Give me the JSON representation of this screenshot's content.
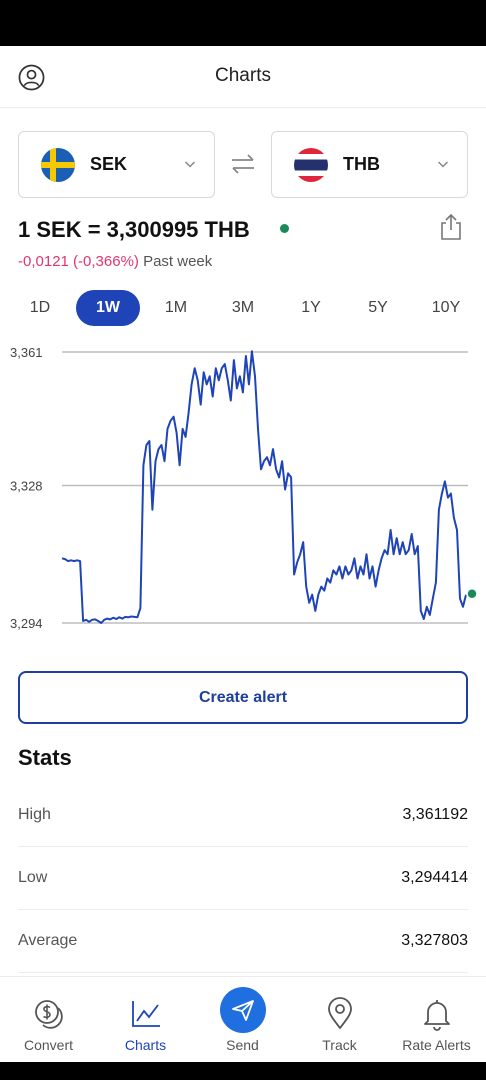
{
  "header": {
    "title": "Charts",
    "profile_icon": "profile-icon"
  },
  "converter": {
    "from": {
      "code": "SEK",
      "flag": "sweden-flag-icon"
    },
    "to": {
      "code": "THB",
      "flag": "thailand-flag-icon"
    },
    "swap_icon": "swap-arrows-icon"
  },
  "rate": {
    "text": "1 SEK = 3,300995 THB",
    "change": "-0,0121 (-0,366%)",
    "period": "Past week",
    "share_icon": "share-icon",
    "live_color": "#1a8a5a",
    "change_color": "#e0366c"
  },
  "ranges": [
    {
      "label": "1D",
      "active": false
    },
    {
      "label": "1W",
      "active": true
    },
    {
      "label": "1M",
      "active": false
    },
    {
      "label": "3M",
      "active": false
    },
    {
      "label": "1Y",
      "active": false
    },
    {
      "label": "5Y",
      "active": false
    },
    {
      "label": "10Y",
      "active": false
    }
  ],
  "chart_data": {
    "type": "line",
    "xlabel": "",
    "ylabel": "",
    "ylim": [
      3.294,
      3.361
    ],
    "yticks": [
      3.294,
      3.328,
      3.361
    ],
    "ytick_labels": [
      "3,294",
      "3,328",
      "3,361"
    ],
    "grid": true,
    "line_color": "#1f44b8",
    "series": [
      {
        "values": [
          3.31,
          3.3098,
          3.3093,
          3.3095,
          3.3093,
          3.3095,
          3.3093,
          3.2945,
          3.2948,
          3.2943,
          3.2948,
          3.2949,
          3.2945,
          3.294,
          3.2948,
          3.2951,
          3.2949,
          3.2953,
          3.295,
          3.2954,
          3.2951,
          3.2955,
          3.2954,
          3.2956,
          3.2955,
          3.2954,
          3.2977,
          3.333,
          3.338,
          3.339,
          3.322,
          3.334,
          3.337,
          3.338,
          3.334,
          3.342,
          3.344,
          3.345,
          3.341,
          3.333,
          3.342,
          3.34,
          3.346,
          3.353,
          3.357,
          3.354,
          3.348,
          3.356,
          3.353,
          3.355,
          3.35,
          3.357,
          3.354,
          3.357,
          3.358,
          3.354,
          3.349,
          3.359,
          3.352,
          3.355,
          3.351,
          3.36,
          3.353,
          3.3612,
          3.355,
          3.342,
          3.332,
          3.334,
          3.335,
          3.333,
          3.337,
          3.332,
          3.33,
          3.334,
          3.327,
          3.331,
          3.33,
          3.306,
          3.309,
          3.311,
          3.314,
          3.303,
          3.299,
          3.301,
          3.297,
          3.301,
          3.303,
          3.302,
          3.305,
          3.304,
          3.307,
          3.306,
          3.308,
          3.305,
          3.308,
          3.306,
          3.307,
          3.31,
          3.305,
          3.308,
          3.306,
          3.311,
          3.305,
          3.308,
          3.303,
          3.307,
          3.31,
          3.312,
          3.311,
          3.317,
          3.311,
          3.315,
          3.311,
          3.314,
          3.311,
          3.312,
          3.316,
          3.311,
          3.313,
          3.297,
          3.295,
          3.298,
          3.296,
          3.3,
          3.304,
          3.322,
          3.326,
          3.329,
          3.325,
          3.326,
          3.32,
          3.317,
          3.3,
          3.298,
          3.301
        ]
      }
    ],
    "last_value": 3.300995,
    "last_point_color": "#1a8a5a"
  },
  "create_alert": {
    "label": "Create alert"
  },
  "stats": {
    "title": "Stats",
    "rows": [
      {
        "label": "High",
        "value": "3,361192"
      },
      {
        "label": "Low",
        "value": "3,294414"
      },
      {
        "label": "Average",
        "value": "3,327803"
      }
    ]
  },
  "nav": {
    "items": [
      {
        "label": "Convert",
        "icon": "coins-icon",
        "active": false
      },
      {
        "label": "Charts",
        "icon": "chart-line-icon",
        "active": true
      },
      {
        "label": "Send",
        "icon": "paper-plane-icon",
        "active": false
      },
      {
        "label": "Track",
        "icon": "location-pin-icon",
        "active": false
      },
      {
        "label": "Rate Alerts",
        "icon": "bell-icon",
        "active": false
      }
    ]
  }
}
